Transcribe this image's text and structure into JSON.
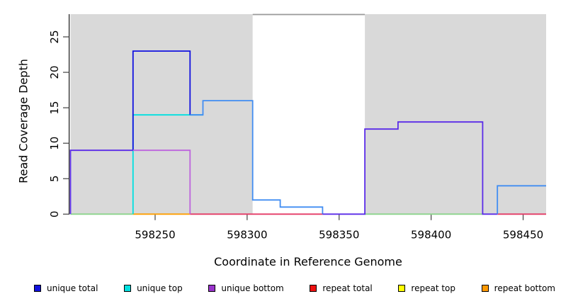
{
  "figure_title": "",
  "y_axis": {
    "label": "Read Coverage Depth",
    "tick_labels": [
      "0",
      "5",
      "10",
      "15",
      "20",
      "25"
    ]
  },
  "x_axis": {
    "label": "Coordinate in Reference Genome",
    "tick_labels": [
      "598250",
      "598300",
      "598350",
      "598400",
      "598450"
    ]
  },
  "legend": {
    "items": [
      {
        "label": "unique total",
        "color": "#1111dd"
      },
      {
        "label": "unique top",
        "color": "#00e0e0"
      },
      {
        "label": "unique bottom",
        "color": "#9933cc"
      },
      {
        "label": "repeat total",
        "color": "#ee1111"
      },
      {
        "label": "repeat top",
        "color": "#ffff00"
      },
      {
        "label": "repeat bottom",
        "color": "#ff9900"
      }
    ]
  },
  "chart_data": {
    "type": "line",
    "subtype": "step-coverage",
    "title": "",
    "xlabel": "Coordinate in Reference Genome",
    "ylabel": "Read Coverage Depth",
    "xlim": [
      598204,
      598462.5
    ],
    "ylim": [
      0,
      28.2
    ],
    "x_ticks": [
      598250,
      598300,
      598350,
      598400,
      598450
    ],
    "y_ticks": [
      0,
      5,
      10,
      15,
      20,
      25
    ],
    "grid": false,
    "legend_position": "bottom",
    "background_color": "#d9d9d9",
    "shaded_regions": [
      {
        "x1": 598204,
        "x2": 598303
      },
      {
        "x1": 598364,
        "x2": 598462.5
      }
    ],
    "gap_top_line": {
      "x1": 598303,
      "x2": 598364,
      "y": 28.15,
      "color": "#999999"
    },
    "series": [
      {
        "name": "unique total",
        "color": "#1111dd",
        "steps": [
          [
            598204,
            9
          ],
          [
            598238,
            23
          ],
          [
            598269,
            14
          ],
          [
            598276,
            16
          ],
          [
            598303,
            2
          ],
          [
            598318,
            1
          ],
          [
            598341,
            0
          ],
          [
            598364,
            12
          ],
          [
            598382,
            13
          ],
          [
            598428,
            0
          ],
          [
            598436,
            4
          ],
          [
            598462,
            4
          ]
        ]
      },
      {
        "name": "unique top",
        "color": "#00e0e0",
        "steps": [
          [
            598204,
            0
          ],
          [
            598238,
            14
          ],
          [
            598276,
            16
          ],
          [
            598303,
            2
          ],
          [
            598318,
            1
          ],
          [
            598341,
            0
          ],
          [
            598436,
            4
          ],
          [
            598462,
            4
          ]
        ]
      },
      {
        "name": "unique bottom",
        "color": "#9933cc",
        "steps": [
          [
            598204,
            9
          ],
          [
            598269,
            0
          ],
          [
            598364,
            12
          ],
          [
            598382,
            13
          ],
          [
            598428,
            0
          ],
          [
            598462,
            0
          ]
        ]
      },
      {
        "name": "repeat total",
        "color": "#ee1111",
        "steps": [
          [
            598204,
            0
          ],
          [
            598462,
            0
          ]
        ]
      },
      {
        "name": "repeat top",
        "color": "#ffff00",
        "steps": [
          [
            598204,
            0
          ],
          [
            598462,
            0
          ]
        ]
      },
      {
        "name": "repeat bottom",
        "color": "#ff9900",
        "steps": [
          [
            598204,
            0
          ],
          [
            598462,
            0
          ]
        ]
      }
    ],
    "render_segments": [
      {
        "name": "baseline-green-left",
        "color": "#8bd48b",
        "points": [
          [
            598204,
            0
          ],
          [
            598238,
            0
          ]
        ]
      },
      {
        "name": "baseline-orange",
        "color": "#ff9e00",
        "points": [
          [
            598238,
            0
          ],
          [
            598269,
            0
          ]
        ]
      },
      {
        "name": "baseline-crimson-mid",
        "color": "#e43a66",
        "points": [
          [
            598269,
            0
          ],
          [
            598341,
            0
          ]
        ]
      },
      {
        "name": "baseline-green-right",
        "color": "#8bd48b",
        "points": [
          [
            598364,
            0
          ],
          [
            598428,
            0
          ]
        ]
      },
      {
        "name": "baseline-crimson-right",
        "color": "#e43a66",
        "points": [
          [
            598436,
            0
          ],
          [
            598462.5,
            0
          ]
        ]
      },
      {
        "name": "cyan-top-line",
        "color": "#00e0e0",
        "points": [
          [
            598238,
            0
          ],
          [
            598238,
            14
          ],
          [
            598276,
            14
          ]
        ]
      },
      {
        "name": "blue-total-peak",
        "color": "#1212e0",
        "points": [
          [
            598238,
            9
          ],
          [
            598238,
            23
          ],
          [
            598269,
            23
          ],
          [
            598269,
            14
          ]
        ]
      },
      {
        "name": "purple-bottom-line",
        "color": "#bd64dd",
        "points": [
          [
            598238,
            9
          ],
          [
            598269,
            9
          ],
          [
            598269,
            0
          ]
        ]
      },
      {
        "name": "violet-left-9",
        "color": "#5a2be8",
        "points": [
          [
            598204,
            0
          ],
          [
            598204,
            9
          ],
          [
            598238,
            9
          ]
        ]
      },
      {
        "name": "lightblue-mid",
        "color": "#418df2",
        "points": [
          [
            598269,
            14
          ],
          [
            598276,
            14
          ],
          [
            598276,
            16
          ],
          [
            598303,
            16
          ],
          [
            598303,
            2
          ],
          [
            598318,
            2
          ],
          [
            598318,
            1
          ],
          [
            598341,
            1
          ],
          [
            598341,
            0
          ]
        ]
      },
      {
        "name": "violet-right-12-13",
        "color": "#5a2be8",
        "points": [
          [
            598341,
            0
          ],
          [
            598364,
            0
          ],
          [
            598364,
            12
          ],
          [
            598382,
            12
          ],
          [
            598382,
            13
          ],
          [
            598428,
            13
          ],
          [
            598428,
            0
          ],
          [
            598436,
            0
          ]
        ]
      },
      {
        "name": "lightblue-right-4",
        "color": "#418df2",
        "points": [
          [
            598436,
            0
          ],
          [
            598436,
            4
          ],
          [
            598462.5,
            4
          ]
        ]
      },
      {
        "name": "gap-top-gray-line",
        "color": "#999999",
        "points": [
          [
            598303,
            28.15
          ],
          [
            598364,
            28.15
          ]
        ]
      }
    ]
  }
}
